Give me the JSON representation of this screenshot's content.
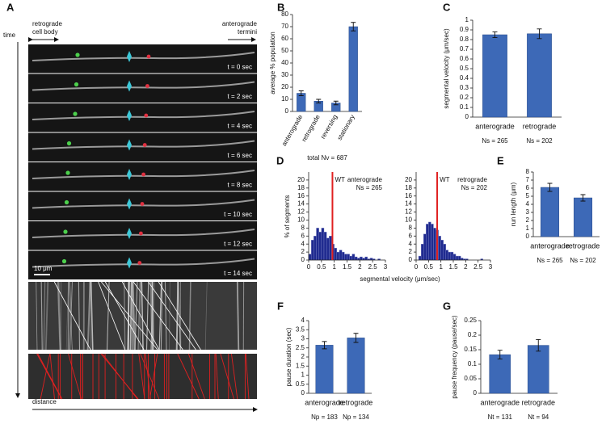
{
  "panel_a": {
    "label": "A",
    "left_label": [
      "retrograde",
      "cell body"
    ],
    "right_label": [
      "anterograde",
      "termini"
    ],
    "time_label": "time",
    "distance_label": "distance",
    "scale_bar": "10 μm",
    "time_labels": [
      "t = 0 sec",
      "t = 2 sec",
      "t = 4 sec",
      "t = 6 sec",
      "t = 8 sec",
      "t = 10 sec",
      "t = 12 sec",
      "t = 14 sec"
    ]
  },
  "chart_data": [
    {
      "type": "bar",
      "panel": "B",
      "ylabel": "average % population",
      "categories": [
        "anterograde",
        "retrograde",
        "reversing",
        "stationary"
      ],
      "values": [
        15,
        8.5,
        7,
        70
      ],
      "errors": [
        2,
        1.5,
        1.5,
        3.5
      ],
      "color": "#3d69b7",
      "ylim": [
        0,
        80
      ],
      "yticks": [
        0,
        10,
        20,
        30,
        40,
        50,
        60,
        70,
        80
      ],
      "note": "total Nv = 687"
    },
    {
      "type": "bar",
      "panel": "C",
      "ylabel": "segmental velocity (μm/sec)",
      "categories": [
        "anterograde",
        "retrograde"
      ],
      "values": [
        0.85,
        0.86
      ],
      "errors": [
        0.03,
        0.05
      ],
      "color": "#3d69b7",
      "ylim": [
        0,
        1
      ],
      "yticks": [
        0,
        0.1,
        0.2,
        0.3,
        0.4,
        0.5,
        0.6,
        0.7,
        0.8,
        0.9,
        1
      ],
      "counts": [
        "Ns = 265",
        "Ns = 202"
      ]
    },
    {
      "type": "histogram",
      "panel": "D",
      "title": "anterograde",
      "note": "Ns = 265",
      "ylabel": "% of segments",
      "xlabel": "segmental velocity (μm/sec)",
      "bins": [
        0,
        0.1,
        0.2,
        0.3,
        0.4,
        0.5,
        0.6,
        0.7,
        0.8,
        0.9,
        1,
        1.1,
        1.2,
        1.3,
        1.4,
        1.5,
        1.6,
        1.7,
        1.8,
        1.9,
        2,
        2.1,
        2.2,
        2.3,
        2.4,
        2.5,
        2.6,
        2.7,
        2.8,
        2.9,
        3
      ],
      "values": [
        1.5,
        5,
        6,
        8,
        7,
        8,
        7,
        5.5,
        6,
        4,
        3,
        2,
        2.5,
        2,
        1.5,
        1.5,
        1,
        1.5,
        0.8,
        0.5,
        0.8,
        0.5,
        0.8,
        0.3,
        0.5,
        0.3,
        0,
        0.3,
        0,
        0
      ],
      "color": "#1f2a8f",
      "marker": {
        "value": 0.93,
        "label": "WT",
        "color": "#e02020"
      },
      "xlim": [
        0,
        3
      ],
      "xticks": [
        0,
        0.5,
        1,
        1.5,
        2,
        2.5,
        3
      ],
      "ylim": [
        0,
        22
      ],
      "yticks": [
        0,
        2,
        4,
        6,
        8,
        10,
        12,
        14,
        16,
        18,
        20
      ]
    },
    {
      "type": "histogram",
      "title": "retrograde",
      "note": "Ns = 202",
      "bins": [
        0,
        0.1,
        0.2,
        0.3,
        0.4,
        0.5,
        0.6,
        0.7,
        0.8,
        0.9,
        1,
        1.1,
        1.2,
        1.3,
        1.4,
        1.5,
        1.6,
        1.7,
        1.8,
        1.9,
        2,
        2.1,
        2.2,
        2.3,
        2.4,
        2.5,
        2.6,
        2.7,
        2.8,
        2.9,
        3
      ],
      "values": [
        0,
        1,
        4,
        6.5,
        9,
        9.5,
        9,
        8,
        7.5,
        6,
        5,
        4,
        2.5,
        2,
        2,
        1.5,
        1,
        1,
        0.5,
        0.3,
        0.3,
        0,
        0,
        0,
        0,
        0,
        0.3,
        0,
        0,
        0
      ],
      "color": "#1f2a8f",
      "marker": {
        "value": 0.85,
        "label": "WT",
        "color": "#e02020"
      },
      "xlim": [
        0,
        3
      ],
      "xticks": [
        0,
        0.5,
        1,
        1.5,
        2,
        2.5,
        3
      ],
      "ylim": [
        0,
        22
      ],
      "yticks": [
        0,
        2,
        4,
        6,
        8,
        10,
        12,
        14,
        16,
        18,
        20
      ]
    },
    {
      "type": "bar",
      "panel": "E",
      "ylabel": "run length (μm)",
      "categories": [
        "anterograde",
        "retrograde"
      ],
      "values": [
        6.1,
        4.8
      ],
      "errors": [
        0.5,
        0.4
      ],
      "color": "#3d69b7",
      "ylim": [
        0,
        8
      ],
      "yticks": [
        0,
        1,
        2,
        3,
        4,
        5,
        6,
        7,
        8
      ],
      "counts": [
        "Ns = 265",
        "Ns = 202"
      ]
    },
    {
      "type": "bar",
      "panel": "F",
      "ylabel": "pause duration (sec)",
      "categories": [
        "anterograde",
        "retrograde"
      ],
      "values": [
        2.65,
        3.05
      ],
      "errors": [
        0.2,
        0.25
      ],
      "color": "#3d69b7",
      "ylim": [
        0,
        4
      ],
      "yticks": [
        0,
        0.5,
        1,
        1.5,
        2,
        2.5,
        3,
        3.5,
        4
      ],
      "counts": [
        "Np = 183",
        "Np = 134"
      ]
    },
    {
      "type": "bar",
      "panel": "G",
      "ylabel": "pause frequency (pause/sec)",
      "categories": [
        "anterograde",
        "retrograde"
      ],
      "values": [
        0.133,
        0.165
      ],
      "errors": [
        0.015,
        0.02
      ],
      "color": "#3d69b7",
      "ylim": [
        0,
        0.25
      ],
      "yticks": [
        0,
        0.05,
        0.1,
        0.15,
        0.2,
        0.25
      ],
      "counts": [
        "Nt = 131",
        "Nt = 94"
      ]
    }
  ]
}
